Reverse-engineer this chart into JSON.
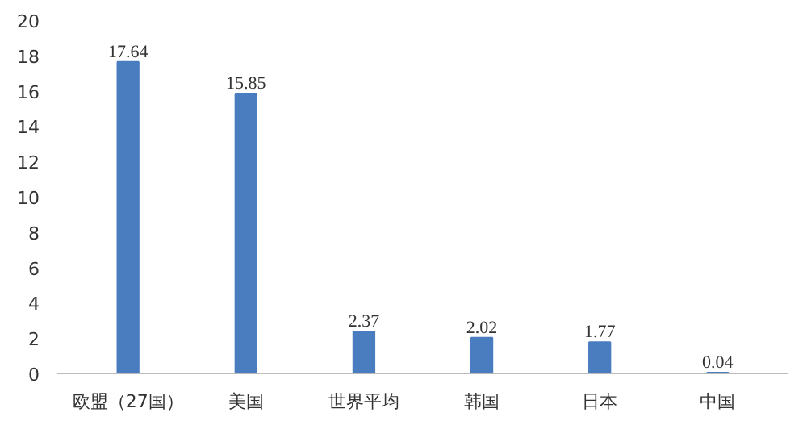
{
  "chart_data": {
    "type": "bar",
    "categories": [
      "欧盟（27国）",
      "美国",
      "世界平均",
      "韩国",
      "日本",
      "中国"
    ],
    "values": [
      17.64,
      15.85,
      2.37,
      2.02,
      1.77,
      0.04
    ],
    "color": "#4a7cc0",
    "ylim": [
      0,
      20
    ],
    "yticks": [
      0,
      2,
      4,
      6,
      8,
      10,
      12,
      14,
      16,
      18,
      20
    ],
    "grid": false,
    "data_labels": true
  }
}
